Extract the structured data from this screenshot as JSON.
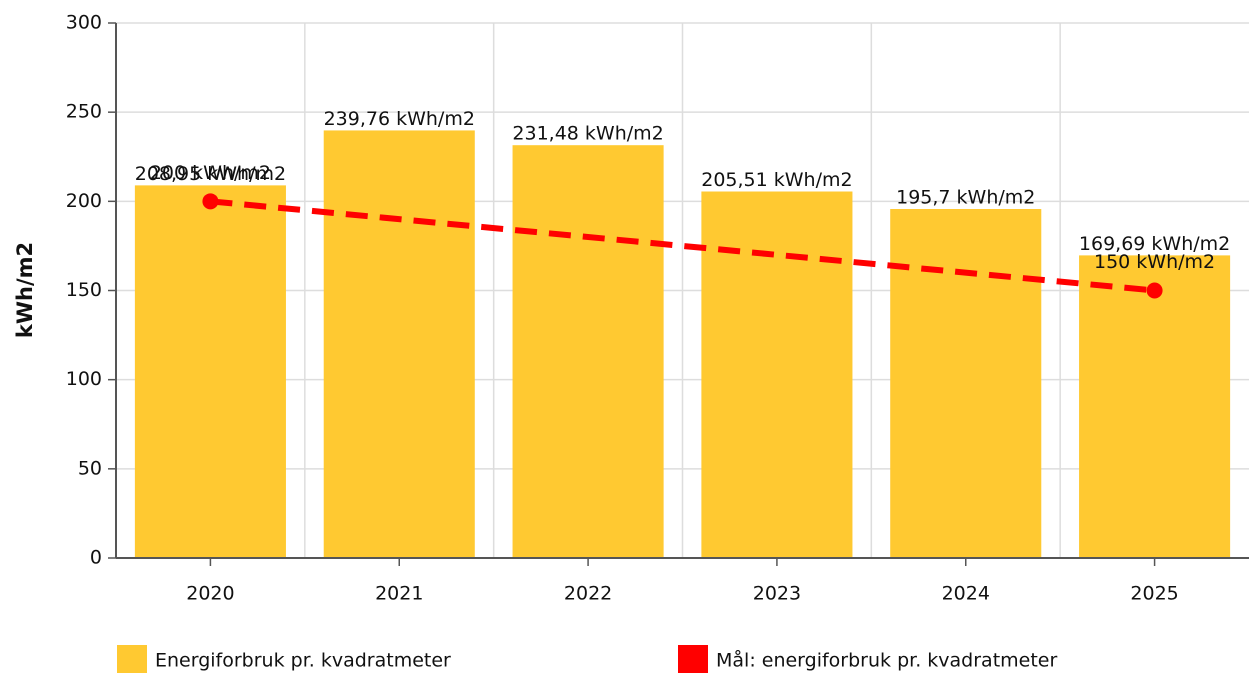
{
  "chart_data": {
    "type": "bar",
    "y_label": "kWh/m2",
    "categories": [
      "2020",
      "2021",
      "2022",
      "2023",
      "2024",
      "2025"
    ],
    "series": [
      {
        "name": "Energiforbruk pr. kvadratmeter",
        "type": "bar",
        "color": "#ffc931",
        "values": [
          208.95,
          239.76,
          231.48,
          205.51,
          195.7,
          169.69
        ],
        "value_labels": [
          "208,95 kWh/m2",
          "239,76 kWh/m2",
          "231,48 kWh/m2",
          "205,51 kWh/m2",
          "195,7 kWh/m2",
          "169,69 kWh/m2"
        ]
      },
      {
        "name": "Mål: energiforbruk pr. kvadratmeter",
        "type": "line",
        "color": "#ff0000",
        "x": [
          "2020",
          "2025"
        ],
        "values": [
          200,
          150
        ],
        "value_labels": [
          "200 kWh/m2",
          "150 kWh/m2"
        ]
      }
    ],
    "ylim": [
      0,
      300
    ],
    "yticks": [
      0,
      50,
      100,
      150,
      200,
      250,
      300
    ],
    "grid": true
  }
}
